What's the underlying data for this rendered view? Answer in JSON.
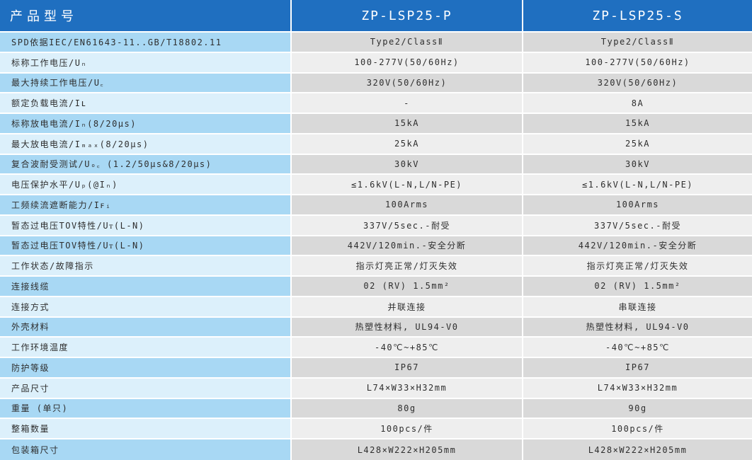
{
  "header": {
    "label": "产品型号",
    "model_p": "ZP-LSP25-P",
    "model_s": "ZP-LSP25-S"
  },
  "rows": [
    {
      "label": "SPD依据IEC/EN61643-11..GB/T18802.11",
      "p": "Type2/ClassⅡ",
      "s": "Type2/ClassⅡ"
    },
    {
      "label": "标称工作电压/Uₙ",
      "p": "100-277V(50/60Hz)",
      "s": "100-277V(50/60Hz)"
    },
    {
      "label": "最大持续工作电压/U꜀",
      "p": "320V(50/60Hz)",
      "s": "320V(50/60Hz)"
    },
    {
      "label": "额定负载电流/Iʟ",
      "p": "-",
      "s": "8A"
    },
    {
      "label": "标称放电电流/Iₙ(8/20μs)",
      "p": "15kA",
      "s": "15kA"
    },
    {
      "label": "最大放电电流/Iₘₐₓ(8/20μs)",
      "p": "25kA",
      "s": "25kA"
    },
    {
      "label": "复合波耐受测试/Uₒ꜀ (1.2/50μs&8/20μs)",
      "p": "30kV",
      "s": "30kV"
    },
    {
      "label": "电压保护水平/Uₚ(@Iₙ)",
      "p": "≤1.6kV(L-N,L/N-PE)",
      "s": "≤1.6kV(L-N,L/N-PE)"
    },
    {
      "label": "工频续流遮断能力/Iꜰᵢ",
      "p": "100Arms",
      "s": "100Arms"
    },
    {
      "label": "暂态过电压TOV特性/Uᴛ(L-N)",
      "p": "337V/5sec.-耐受",
      "s": "337V/5sec.-耐受"
    },
    {
      "label": "暂态过电压TOV特性/Uᴛ(L-N)",
      "p": "442V/120min.-安全分断",
      "s": "442V/120min.-安全分断"
    },
    {
      "label": "工作状态/故障指示",
      "p": "指示灯亮正常/灯灭失效",
      "s": "指示灯亮正常/灯灭失效"
    },
    {
      "label": "连接线缆",
      "p": "02 (RV) 1.5mm²",
      "s": "02 (RV) 1.5mm²"
    },
    {
      "label": "连接方式",
      "p": "并联连接",
      "s": "串联连接"
    },
    {
      "label": "外壳材料",
      "p": "热塑性材料, UL94-V0",
      "s": "热塑性材料, UL94-V0"
    },
    {
      "label": "工作环境温度",
      "p": "-40℃~+85℃",
      "s": "-40℃~+85℃"
    },
    {
      "label": "防护等级",
      "p": "IP67",
      "s": "IP67"
    },
    {
      "label": "产品尺寸",
      "p": "L74×W33×H32mm",
      "s": "L74×W33×H32mm"
    },
    {
      "label": "重量 (单只)",
      "p": "80g",
      "s": "90g"
    },
    {
      "label": "整箱数量",
      "p": "100pcs/件",
      "s": "100pcs/件"
    },
    {
      "label": "包装箱尺寸",
      "p": "L428×W222×H205mm",
      "s": "L428×W222×H205mm"
    }
  ]
}
